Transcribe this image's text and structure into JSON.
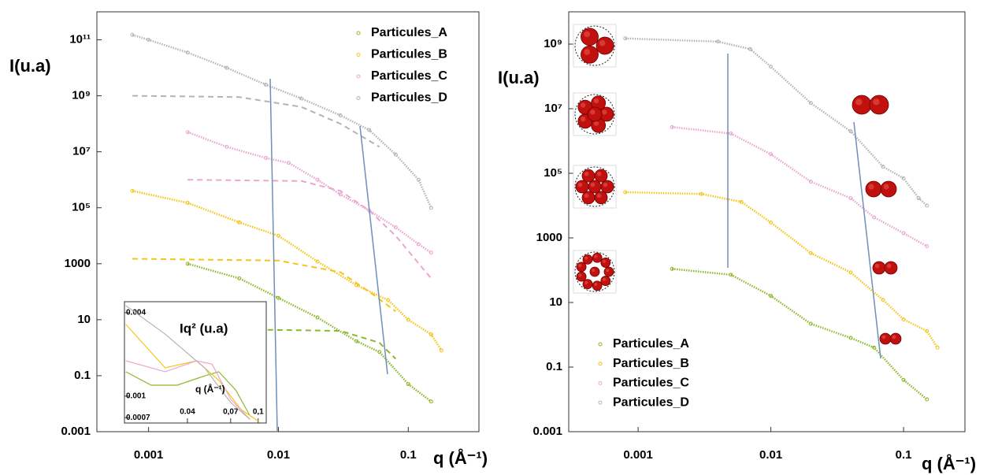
{
  "chart_data": [
    {
      "type": "scatter",
      "log_x": true,
      "log_y": true,
      "y_label": "I(u.a)",
      "x_label": "q (Å⁻¹)",
      "legend": "top-right",
      "xlim": [
        0.0004,
        0.35
      ],
      "ylim": [
        0.001,
        1000000000000.0
      ],
      "xticks": [
        0.001,
        0.01,
        0.1
      ],
      "yticks": [
        0.001,
        0.1,
        10,
        1000,
        {
          "value": 100000,
          "label": "10⁵"
        },
        {
          "value": 10000000,
          "label": "10⁷"
        },
        {
          "value": 1000000000,
          "label": "10⁹"
        },
        {
          "value": 100000000000,
          "label": "10¹¹"
        }
      ],
      "series": [
        {
          "name": "Particules_A",
          "color": "#8cb82c",
          "x": [
            0.002,
            0.005,
            0.01,
            0.02,
            0.04,
            0.06,
            0.1,
            0.15
          ],
          "values": [
            1000,
            300,
            60,
            12,
            1.7,
            0.7,
            0.05,
            0.012
          ]
        },
        {
          "name": "Particules_B",
          "color": "#f5c518",
          "x": [
            0.00075,
            0.002,
            0.005,
            0.01,
            0.02,
            0.04,
            0.07,
            0.1,
            0.15,
            0.18
          ],
          "values": [
            400000,
            150000,
            30000,
            10000,
            1200,
            170,
            50,
            10,
            3,
            0.8
          ]
        },
        {
          "name": "Particules_C",
          "color": "#eaa6cf",
          "x": [
            0.002,
            0.004,
            0.008,
            0.012,
            0.02,
            0.03,
            0.05,
            0.08,
            0.12,
            0.15
          ],
          "values": [
            50000000,
            15000000,
            6000000,
            4000000,
            1000000,
            300000,
            80000,
            20000,
            5000,
            2500
          ]
        },
        {
          "name": "Particules_D",
          "color": "#b4b4b4",
          "x": [
            0.00075,
            0.001,
            0.002,
            0.004,
            0.008,
            0.015,
            0.03,
            0.05,
            0.08,
            0.12,
            0.15
          ],
          "values": [
            150000000000,
            100000000000,
            35000000000,
            10000000000,
            2500000000,
            800000000,
            200000000,
            60000000,
            8000000,
            1000000,
            100000
          ]
        }
      ],
      "fits": [
        {
          "color": "#8cb82c",
          "x": [
            0.005,
            0.03,
            0.06,
            0.08
          ],
          "values": [
            4.5,
            4,
            1.5,
            0.4
          ]
        },
        {
          "color": "#f5c518",
          "x": [
            0.00075,
            0.01,
            0.03,
            0.05,
            0.08
          ],
          "values": [
            1500,
            1300,
            500,
            100,
            20
          ]
        },
        {
          "color": "#eaa6cf",
          "x": [
            0.002,
            0.015,
            0.03,
            0.05,
            0.08,
            0.15
          ],
          "values": [
            1000000,
            900000,
            400000,
            80000,
            10000,
            300
          ]
        },
        {
          "color": "#b4b4b4",
          "x": [
            0.00075,
            0.005,
            0.015,
            0.03,
            0.06
          ],
          "values": [
            1000000000,
            900000000,
            400000000,
            100000000,
            15000000
          ]
        }
      ]
    },
    {
      "type": "scatter",
      "log_x": true,
      "log_y": true,
      "y_label": "Iq² (u.a)",
      "x_label": "q (Å⁻¹)",
      "xlim": [
        0.0177,
        0.111
      ],
      "ylim": [
        0.00064,
        0.0048
      ],
      "xticks": [
        0.04,
        {
          "value": 0.07,
          "label": "0,07"
        },
        {
          "value": 0.1,
          "label": "0,1"
        }
      ],
      "yticks": [
        0.004,
        0.001,
        0.0007
      ],
      "series": [
        {
          "color": "#8cb82c",
          "x": [
            0.018,
            0.025,
            0.035,
            0.05,
            0.06,
            0.075,
            0.09
          ],
          "values": [
            0.0015,
            0.0012,
            0.0012,
            0.0014,
            0.0015,
            0.0011,
            0.00072
          ]
        },
        {
          "color": "#f5c518",
          "x": [
            0.018,
            0.03,
            0.045,
            0.06,
            0.08,
            0.1
          ],
          "values": [
            0.0033,
            0.0016,
            0.0018,
            0.0013,
            0.0008,
            0.00066
          ]
        },
        {
          "color": "#eaa6cf",
          "x": [
            0.018,
            0.03,
            0.045,
            0.055,
            0.07,
            0.09
          ],
          "values": [
            0.0018,
            0.0015,
            0.0018,
            0.0017,
            0.00095,
            0.00068
          ]
        },
        {
          "color": "#b4b4b4",
          "x": [
            0.018,
            0.03,
            0.05,
            0.07,
            0.09
          ],
          "values": [
            0.0045,
            0.0028,
            0.0016,
            0.0009,
            0.00068
          ]
        }
      ]
    },
    {
      "type": "scatter",
      "log_x": true,
      "log_y": true,
      "y_label": "I(u.a)",
      "x_label": "q (Å⁻¹)",
      "legend": "bottom-left",
      "xlim": [
        0.0003,
        0.29
      ],
      "ylim": [
        0.001,
        10000000000
      ],
      "xticks": [
        0.001,
        0.01,
        0.1
      ],
      "yticks": [
        0.001,
        0.1,
        10,
        1000,
        {
          "value": 100000,
          "label": "10⁵"
        },
        {
          "value": 10000000,
          "label": "10⁷"
        },
        {
          "value": 1000000000,
          "label": "10⁹"
        }
      ],
      "series": [
        {
          "name": "Particules_A",
          "color": "#8cb82c",
          "x": [
            0.0018,
            0.005,
            0.01,
            0.02,
            0.04,
            0.06,
            0.1,
            0.15
          ],
          "values": [
            110,
            72,
            16,
            2.2,
            0.8,
            0.4,
            0.04,
            0.01
          ]
        },
        {
          "name": "Particules_B",
          "color": "#f5c518",
          "x": [
            0.0008,
            0.003,
            0.006,
            0.01,
            0.02,
            0.04,
            0.07,
            0.1,
            0.15,
            0.18
          ],
          "values": [
            26000,
            23000,
            13000,
            3000,
            340,
            85,
            12,
            3,
            1.3,
            0.4
          ]
        },
        {
          "name": "Particules_C",
          "color": "#eaa6cf",
          "x": [
            0.0018,
            0.005,
            0.01,
            0.02,
            0.04,
            0.06,
            0.1,
            0.15
          ],
          "values": [
            2700000,
            1700000,
            390000,
            55000,
            17000,
            4300,
            1400,
            550
          ]
        },
        {
          "name": "Particules_D",
          "color": "#b4b4b4",
          "x": [
            0.0008,
            0.004,
            0.007,
            0.01,
            0.02,
            0.04,
            0.07,
            0.1,
            0.13,
            0.15
          ],
          "values": [
            1500000000,
            1200000000,
            700000000,
            200000000,
            15000000,
            2000000,
            160000,
            70000,
            17000,
            10000
          ]
        }
      ]
    }
  ]
}
